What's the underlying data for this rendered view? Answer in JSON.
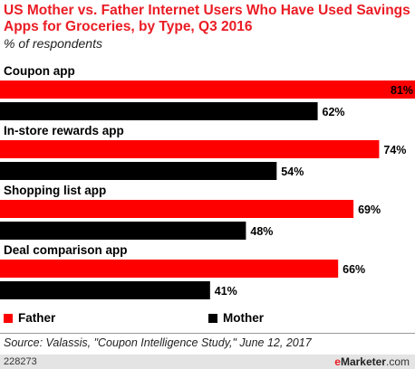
{
  "title": "US Mother vs. Father Internet Users Who Have Used Savings Apps for Groceries, by Type, Q3 2016",
  "subtitle": "% of respondents",
  "source": "Source: Valassis, \"Coupon Intelligence Study,\" June 12, 2017",
  "footer": {
    "id": "228273",
    "brand_e": "e",
    "brand_rest": "Marketer",
    "brand_suffix": ".com"
  },
  "colors": {
    "father": "#ff0000",
    "mother": "#000000"
  },
  "chart_data": {
    "type": "bar",
    "orientation": "horizontal",
    "categories": [
      "Coupon app",
      "In-store rewards app",
      "Shopping list app",
      "Deal comparison app"
    ],
    "series": [
      {
        "name": "Father",
        "values": [
          81,
          74,
          69,
          66
        ],
        "labels": [
          "81%",
          "74%",
          "69%",
          "66%"
        ]
      },
      {
        "name": "Mother",
        "values": [
          62,
          54,
          48,
          41
        ],
        "labels": [
          "62%",
          "54%",
          "48%",
          "41%"
        ]
      }
    ],
    "xlim": [
      0,
      81
    ],
    "legend": "bottom"
  }
}
